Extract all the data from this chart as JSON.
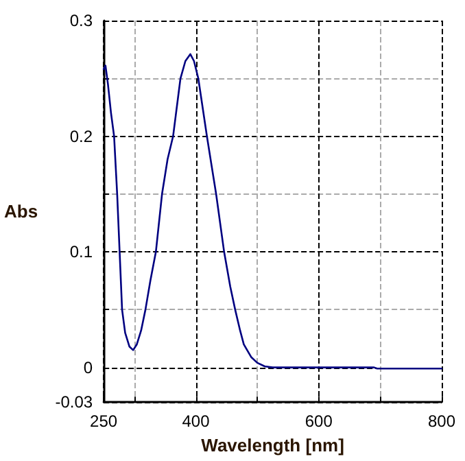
{
  "chart_data": {
    "type": "line",
    "xlabel": "Wavelength [nm]",
    "ylabel": "Abs",
    "xlim": [
      250,
      800
    ],
    "xticks": [
      250,
      {
        "value": 300,
        "label": null
      },
      400,
      {
        "value": 500,
        "label": null
      },
      600,
      {
        "value": 700,
        "label": null
      },
      800
    ],
    "ylim": [
      -0.03,
      0.3
    ],
    "yticks": [
      -0.03,
      0,
      {
        "value": 0.05,
        "label": null
      },
      0.1,
      {
        "value": 0.15,
        "label": null
      },
      0.2,
      {
        "value": 0.25,
        "label": null
      },
      0.3
    ],
    "grid": true,
    "marker": "none",
    "line_style": "solid",
    "series": [
      {
        "color": "#000080",
        "x": [
          250,
          253,
          257,
          262,
          267,
          272,
          276,
          280,
          285,
          292,
          298,
          304,
          311,
          318,
          326,
          335,
          345,
          354,
          363,
          375,
          383,
          391,
          397,
          404,
          418,
          433,
          446,
          456,
          464,
          472,
          478,
          490,
          500,
          512,
          525,
          600,
          690,
          695,
          800
        ],
        "values": [
          0.258,
          0.261,
          0.245,
          0.22,
          0.2,
          0.15,
          0.1,
          0.05,
          0.03,
          0.018,
          0.015,
          0.02,
          0.032,
          0.05,
          0.075,
          0.1,
          0.15,
          0.18,
          0.2,
          0.25,
          0.265,
          0.271,
          0.265,
          0.25,
          0.2,
          0.15,
          0.1,
          0.07,
          0.05,
          0.032,
          0.02,
          0.009,
          0.004,
          0.001,
          0,
          0,
          0,
          -0.001,
          -0.001
        ]
      }
    ]
  }
}
